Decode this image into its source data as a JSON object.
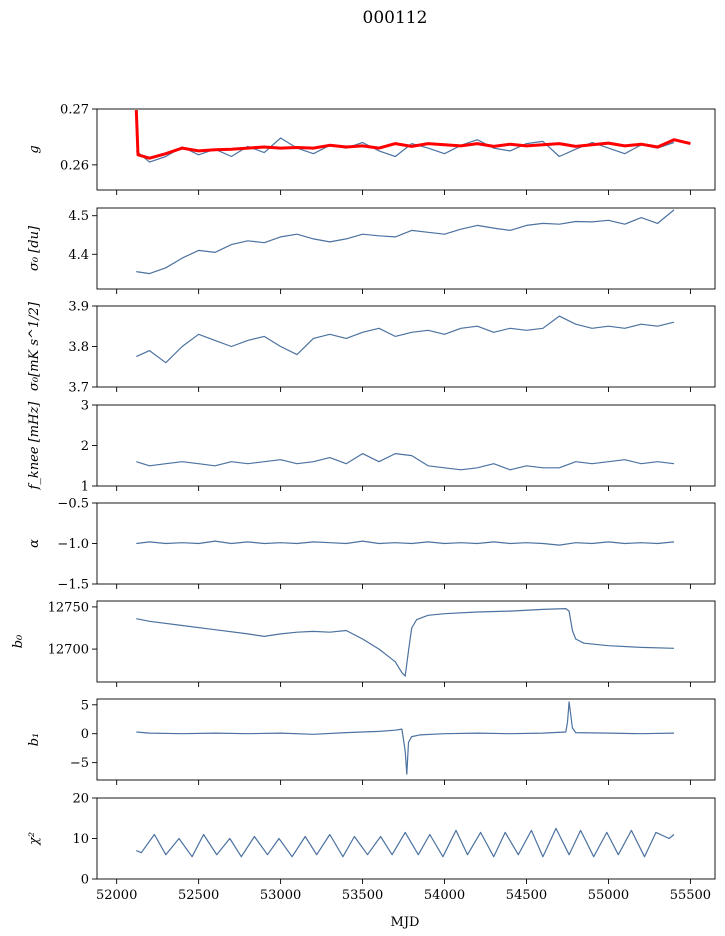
{
  "figure": {
    "title": "000112",
    "xlabel": "MJD",
    "x_ticks": [
      52000,
      52500,
      53000,
      53500,
      54000,
      54500,
      55000,
      55500
    ],
    "xlim": [
      51880,
      55650
    ]
  },
  "chart_data": [
    {
      "type": "line",
      "ylabel": "g",
      "ylim": [
        0.2555,
        0.27
      ],
      "yticks": [
        0.26,
        0.27
      ],
      "ytick_labels": [
        "0.26",
        "0.27"
      ],
      "series": [
        {
          "color": "#4c72a0",
          "x": [
            52120,
            52200,
            52300,
            52400,
            52500,
            52600,
            52700,
            52800,
            52900,
            53000,
            53100,
            53200,
            53300,
            53400,
            53500,
            53600,
            53700,
            53800,
            53900,
            54000,
            54100,
            54200,
            54300,
            54400,
            54500,
            54600,
            54700,
            54800,
            54900,
            55000,
            55100,
            55200,
            55300,
            55400
          ],
          "values": [
            0.2625,
            0.2605,
            0.2615,
            0.2632,
            0.2618,
            0.2628,
            0.2615,
            0.2633,
            0.2622,
            0.2648,
            0.263,
            0.262,
            0.2635,
            0.263,
            0.264,
            0.2625,
            0.2615,
            0.2638,
            0.263,
            0.262,
            0.2635,
            0.2645,
            0.263,
            0.2625,
            0.2638,
            0.2642,
            0.2615,
            0.2628,
            0.264,
            0.263,
            0.262,
            0.2636,
            0.263,
            0.264
          ]
        },
        {
          "color": "#ff0000",
          "x": [
            52120,
            52130,
            52200,
            52300,
            52400,
            52500,
            52600,
            52700,
            52800,
            52900,
            53000,
            53100,
            53200,
            53300,
            53400,
            53500,
            53600,
            53700,
            53800,
            53900,
            54000,
            54100,
            54200,
            54300,
            54400,
            54500,
            54600,
            54700,
            54800,
            54900,
            55000,
            55100,
            55200,
            55300,
            55400,
            55500
          ],
          "values": [
            0.2698,
            0.2618,
            0.2612,
            0.262,
            0.263,
            0.2625,
            0.2627,
            0.2628,
            0.263,
            0.2632,
            0.263,
            0.2631,
            0.263,
            0.2635,
            0.2632,
            0.2634,
            0.263,
            0.2638,
            0.2633,
            0.2638,
            0.2636,
            0.2634,
            0.2638,
            0.2633,
            0.2637,
            0.2634,
            0.2636,
            0.2638,
            0.2633,
            0.2636,
            0.2639,
            0.2634,
            0.2637,
            0.2632,
            0.2645,
            0.2638
          ]
        }
      ]
    },
    {
      "type": "line",
      "ylabel": "σ₀ [du]",
      "ylim": [
        4.31,
        4.52
      ],
      "yticks": [
        4.4,
        4.5
      ],
      "ytick_labels": [
        "4.4",
        "4.5"
      ],
      "series": [
        {
          "color": "#4c72a0",
          "x": [
            52120,
            52200,
            52300,
            52400,
            52500,
            52600,
            52700,
            52800,
            52900,
            53000,
            53100,
            53200,
            53300,
            53400,
            53500,
            53600,
            53700,
            53800,
            53900,
            54000,
            54100,
            54200,
            54300,
            54400,
            54500,
            54600,
            54700,
            54800,
            54900,
            55000,
            55100,
            55200,
            55300,
            55400
          ],
          "values": [
            4.355,
            4.35,
            4.365,
            4.39,
            4.41,
            4.405,
            4.425,
            4.435,
            4.43,
            4.445,
            4.452,
            4.44,
            4.432,
            4.44,
            4.452,
            4.448,
            4.445,
            4.462,
            4.457,
            4.452,
            4.465,
            4.475,
            4.468,
            4.462,
            4.475,
            4.48,
            4.478,
            4.485,
            4.484,
            4.488,
            4.478,
            4.495,
            4.48,
            4.515
          ]
        }
      ]
    },
    {
      "type": "line",
      "ylabel": "σ₀[mK s^1/2]",
      "ylim": [
        3.7,
        3.9
      ],
      "yticks": [
        3.7,
        3.8,
        3.9
      ],
      "ytick_labels": [
        "3.7",
        "3.8",
        "3.9"
      ],
      "series": [
        {
          "color": "#4c72a0",
          "x": [
            52120,
            52200,
            52300,
            52400,
            52500,
            52600,
            52700,
            52800,
            52900,
            53000,
            53100,
            53200,
            53300,
            53400,
            53500,
            53600,
            53700,
            53800,
            53900,
            54000,
            54100,
            54200,
            54300,
            54400,
            54500,
            54600,
            54700,
            54800,
            54900,
            55000,
            55100,
            55200,
            55300,
            55400
          ],
          "values": [
            3.775,
            3.79,
            3.76,
            3.8,
            3.83,
            3.815,
            3.8,
            3.815,
            3.825,
            3.8,
            3.78,
            3.82,
            3.83,
            3.82,
            3.835,
            3.845,
            3.825,
            3.835,
            3.84,
            3.83,
            3.845,
            3.85,
            3.835,
            3.845,
            3.84,
            3.845,
            3.875,
            3.855,
            3.845,
            3.85,
            3.845,
            3.855,
            3.85,
            3.86
          ]
        }
      ]
    },
    {
      "type": "line",
      "ylabel": "f_knee [mHz]",
      "ylim": [
        1,
        3
      ],
      "yticks": [
        1,
        2,
        3
      ],
      "ytick_labels": [
        "1",
        "2",
        "3"
      ],
      "series": [
        {
          "color": "#4c72a0",
          "x": [
            52120,
            52200,
            52300,
            52400,
            52500,
            52600,
            52700,
            52800,
            52900,
            53000,
            53100,
            53200,
            53300,
            53400,
            53500,
            53600,
            53700,
            53800,
            53900,
            54000,
            54100,
            54200,
            54300,
            54400,
            54500,
            54600,
            54700,
            54800,
            54900,
            55000,
            55100,
            55200,
            55300,
            55400
          ],
          "values": [
            1.6,
            1.5,
            1.55,
            1.6,
            1.55,
            1.5,
            1.6,
            1.55,
            1.6,
            1.65,
            1.55,
            1.6,
            1.7,
            1.55,
            1.8,
            1.6,
            1.8,
            1.75,
            1.5,
            1.45,
            1.4,
            1.45,
            1.55,
            1.4,
            1.5,
            1.45,
            1.45,
            1.6,
            1.55,
            1.6,
            1.65,
            1.55,
            1.6,
            1.55
          ]
        }
      ]
    },
    {
      "type": "line",
      "ylabel": "α",
      "ylim": [
        -1.5,
        -0.5
      ],
      "yticks": [
        -1.5,
        -1.0,
        -0.5
      ],
      "ytick_labels": [
        "−1.5",
        "−1.0",
        "−0.5"
      ],
      "series": [
        {
          "color": "#4c72a0",
          "x": [
            52120,
            52200,
            52300,
            52400,
            52500,
            52600,
            52700,
            52800,
            52900,
            53000,
            53100,
            53200,
            53300,
            53400,
            53500,
            53600,
            53700,
            53800,
            53900,
            54000,
            54100,
            54200,
            54300,
            54400,
            54500,
            54600,
            54700,
            54800,
            54900,
            55000,
            55100,
            55200,
            55300,
            55400
          ],
          "values": [
            -1.0,
            -0.98,
            -1.0,
            -0.99,
            -1.0,
            -0.97,
            -1.0,
            -0.98,
            -1.0,
            -0.99,
            -1.0,
            -0.98,
            -0.99,
            -1.0,
            -0.97,
            -1.0,
            -0.99,
            -1.0,
            -0.98,
            -1.0,
            -0.99,
            -1.0,
            -0.98,
            -1.0,
            -0.99,
            -1.0,
            -1.02,
            -0.99,
            -1.0,
            -0.98,
            -1.0,
            -0.99,
            -1.0,
            -0.98
          ]
        }
      ]
    },
    {
      "type": "line",
      "ylabel": "b₀",
      "ylim": [
        12661,
        12757
      ],
      "yticks": [
        12700,
        12750
      ],
      "ytick_labels": [
        "12700",
        "12750"
      ],
      "series": [
        {
          "color": "#4c72a0",
          "x": [
            52120,
            52200,
            52400,
            52600,
            52800,
            52900,
            53000,
            53100,
            53200,
            53300,
            53400,
            53500,
            53600,
            53700,
            53740,
            53760,
            53780,
            53800,
            53830,
            53900,
            54000,
            54200,
            54400,
            54600,
            54740,
            54760,
            54780,
            54800,
            54850,
            55000,
            55200,
            55400
          ],
          "values": [
            12736,
            12733,
            12728,
            12723,
            12718,
            12715,
            12718,
            12720,
            12721,
            12720,
            12722,
            12712,
            12700,
            12685,
            12672,
            12668,
            12698,
            12725,
            12735,
            12740,
            12742,
            12744,
            12745,
            12747,
            12748,
            12745,
            12722,
            12712,
            12707,
            12704,
            12702,
            12701
          ]
        }
      ]
    },
    {
      "type": "line",
      "ylabel": "b₁",
      "ylim": [
        -8,
        6
      ],
      "yticks": [
        -5,
        0,
        5
      ],
      "ytick_labels": [
        "−5",
        "0",
        "5"
      ],
      "series": [
        {
          "color": "#4c72a0",
          "x": [
            52120,
            52200,
            52400,
            52600,
            52800,
            53000,
            53200,
            53400,
            53600,
            53700,
            53740,
            53760,
            53770,
            53780,
            53800,
            53850,
            54000,
            54200,
            54400,
            54600,
            54740,
            54750,
            54760,
            54780,
            54800,
            55000,
            55200,
            55400
          ],
          "values": [
            0.3,
            0.1,
            0.0,
            0.1,
            0.0,
            0.1,
            -0.1,
            0.2,
            0.4,
            0.6,
            0.8,
            -3.0,
            -7.0,
            -1.5,
            -0.5,
            -0.2,
            0.0,
            0.1,
            0.0,
            0.1,
            0.3,
            2.0,
            5.5,
            1.0,
            0.2,
            0.1,
            0.0,
            0.1
          ]
        }
      ]
    },
    {
      "type": "line",
      "ylabel": "χ²",
      "ylim": [
        0,
        20
      ],
      "yticks": [
        0,
        10,
        20
      ],
      "ytick_labels": [
        "0",
        "10",
        "20"
      ],
      "series": [
        {
          "color": "#4c72a0",
          "x": [
            52120,
            52150,
            52230,
            52300,
            52380,
            52460,
            52530,
            52610,
            52690,
            52760,
            52840,
            52920,
            52990,
            53070,
            53150,
            53220,
            53300,
            53380,
            53450,
            53530,
            53610,
            53680,
            53760,
            53840,
            53910,
            53990,
            54070,
            54140,
            54220,
            54300,
            54370,
            54450,
            54530,
            54600,
            54680,
            54760,
            54830,
            54910,
            54990,
            55060,
            55140,
            55220,
            55290,
            55370,
            55400
          ],
          "values": [
            7,
            6.5,
            11,
            6,
            10,
            5.5,
            11,
            6,
            10,
            5.5,
            10.5,
            6,
            10,
            5.5,
            10.5,
            6,
            11,
            5.5,
            10.5,
            6,
            10.5,
            6,
            11.5,
            6,
            11,
            5.5,
            12,
            6,
            11.5,
            5.5,
            11.5,
            6,
            12,
            5.5,
            12.5,
            6,
            12,
            5.5,
            11.5,
            6,
            12,
            5.5,
            11.5,
            10,
            11
          ]
        }
      ]
    }
  ]
}
